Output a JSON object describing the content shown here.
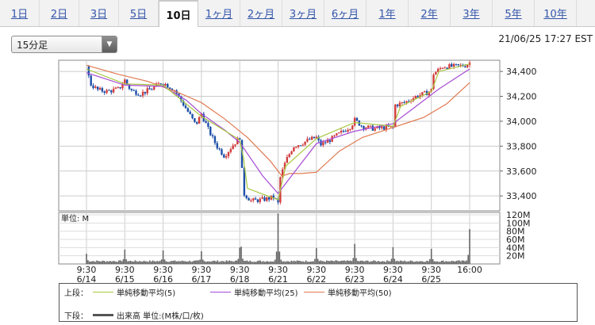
{
  "tabs": [
    "1日",
    "2日",
    "3日",
    "5日",
    "10日",
    "1ヶ月",
    "2ヶ月",
    "3ヶ月",
    "6ヶ月",
    "1年",
    "2年",
    "3年",
    "5年",
    "10年"
  ],
  "active_tab": "10日",
  "interval_select": {
    "value": "15分足",
    "icon": "chevron-down-icon"
  },
  "datetime": "21/06/25 17:27 EST",
  "legend": {
    "upper_label": "上段：",
    "lower_label": "下段：",
    "items": [
      {
        "label": "単純移動平均(5)",
        "color": "#a8c840"
      },
      {
        "label": "単純移動平均(25)",
        "color": "#a64cd6"
      },
      {
        "label": "単純移動平均(50)",
        "color": "#e07a50"
      }
    ],
    "volume_label": "出来高 単位:(M株/口/枚)",
    "volume_color": "#555555"
  },
  "chart_data": {
    "type": "candlestick",
    "x_labels": [
      {
        "time": "9:30",
        "date": "6/14"
      },
      {
        "time": "9:30",
        "date": "6/15"
      },
      {
        "time": "9:30",
        "date": "6/16"
      },
      {
        "time": "9:30",
        "date": "6/17"
      },
      {
        "time": "9:30",
        "date": "6/18"
      },
      {
        "time": "9:30",
        "date": "6/21"
      },
      {
        "time": "9:30",
        "date": "6/22"
      },
      {
        "time": "9:30",
        "date": "6/23"
      },
      {
        "time": "9:30",
        "date": "6/24"
      },
      {
        "time": "9:30",
        "date": "6/25"
      },
      {
        "time": "16:00",
        "date": ""
      }
    ],
    "price_axis": {
      "ticks": [
        "34,400",
        "34,200",
        "34,000",
        "33,800",
        "33,600",
        "33,400"
      ],
      "tick_values": [
        34400,
        34200,
        34000,
        33800,
        33600,
        33400
      ],
      "range": [
        33280,
        34490
      ]
    },
    "volume_axis": {
      "unit_label": "単位: M",
      "ticks": [
        "120M",
        "100M",
        "80M",
        "60M",
        "40M",
        "20M"
      ],
      "tick_values": [
        120,
        100,
        80,
        60,
        40,
        20
      ],
      "range": [
        0,
        120
      ]
    },
    "close_path": [
      {
        "t": 0.0,
        "v": 34440
      },
      {
        "t": 0.1,
        "v": 34300
      },
      {
        "t": 0.3,
        "v": 34250
      },
      {
        "t": 0.55,
        "v": 34240
      },
      {
        "t": 0.85,
        "v": 34260
      },
      {
        "t": 1.0,
        "v": 34330
      },
      {
        "t": 1.15,
        "v": 34250
      },
      {
        "t": 1.4,
        "v": 34220
      },
      {
        "t": 1.7,
        "v": 34260
      },
      {
        "t": 1.95,
        "v": 34310
      },
      {
        "t": 2.05,
        "v": 34300
      },
      {
        "t": 2.3,
        "v": 34250
      },
      {
        "t": 2.5,
        "v": 34150
      },
      {
        "t": 2.7,
        "v": 34050
      },
      {
        "t": 2.85,
        "v": 33970
      },
      {
        "t": 3.0,
        "v": 34060
      },
      {
        "t": 3.2,
        "v": 33920
      },
      {
        "t": 3.4,
        "v": 33800
      },
      {
        "t": 3.6,
        "v": 33720
      },
      {
        "t": 3.8,
        "v": 33800
      },
      {
        "t": 4.0,
        "v": 33870
      },
      {
        "t": 4.1,
        "v": 33420
      },
      {
        "t": 4.3,
        "v": 33360
      },
      {
        "t": 4.6,
        "v": 33370
      },
      {
        "t": 4.9,
        "v": 33390
      },
      {
        "t": 5.0,
        "v": 33340
      },
      {
        "t": 5.05,
        "v": 33540
      },
      {
        "t": 5.2,
        "v": 33680
      },
      {
        "t": 5.4,
        "v": 33800
      },
      {
        "t": 5.6,
        "v": 33820
      },
      {
        "t": 5.8,
        "v": 33850
      },
      {
        "t": 6.0,
        "v": 33870
      },
      {
        "t": 6.1,
        "v": 33810
      },
      {
        "t": 6.3,
        "v": 33840
      },
      {
        "t": 6.6,
        "v": 33900
      },
      {
        "t": 6.9,
        "v": 33960
      },
      {
        "t": 7.0,
        "v": 34010
      },
      {
        "t": 7.2,
        "v": 33960
      },
      {
        "t": 7.5,
        "v": 33940
      },
      {
        "t": 7.8,
        "v": 33950
      },
      {
        "t": 8.0,
        "v": 33950
      },
      {
        "t": 8.05,
        "v": 34130
      },
      {
        "t": 8.3,
        "v": 34150
      },
      {
        "t": 8.6,
        "v": 34200
      },
      {
        "t": 8.9,
        "v": 34230
      },
      {
        "t": 9.0,
        "v": 34250
      },
      {
        "t": 9.05,
        "v": 34380
      },
      {
        "t": 9.3,
        "v": 34440
      },
      {
        "t": 9.6,
        "v": 34440
      },
      {
        "t": 9.9,
        "v": 34450
      },
      {
        "t": 10.0,
        "v": 34470
      }
    ],
    "sma5": [
      {
        "t": 0,
        "v": 34420
      },
      {
        "t": 1,
        "v": 34300
      },
      {
        "t": 2,
        "v": 34290
      },
      {
        "t": 3,
        "v": 34040
      },
      {
        "t": 4,
        "v": 33850
      },
      {
        "t": 4.1,
        "v": 33700
      },
      {
        "t": 4.2,
        "v": 33460
      },
      {
        "t": 5,
        "v": 33370
      },
      {
        "t": 5.2,
        "v": 33640
      },
      {
        "t": 6,
        "v": 33860
      },
      {
        "t": 7,
        "v": 33990
      },
      {
        "t": 8,
        "v": 33960
      },
      {
        "t": 8.2,
        "v": 34120
      },
      {
        "t": 9,
        "v": 34240
      },
      {
        "t": 9.2,
        "v": 34400
      },
      {
        "t": 10,
        "v": 34460
      }
    ],
    "sma25": [
      {
        "t": 0,
        "v": 34390
      },
      {
        "t": 1,
        "v": 34290
      },
      {
        "t": 2,
        "v": 34280
      },
      {
        "t": 2.6,
        "v": 34170
      },
      {
        "t": 3,
        "v": 34060
      },
      {
        "t": 3.6,
        "v": 33930
      },
      {
        "t": 4,
        "v": 33830
      },
      {
        "t": 4.6,
        "v": 33560
      },
      {
        "t": 5,
        "v": 33420
      },
      {
        "t": 5.4,
        "v": 33580
      },
      {
        "t": 6,
        "v": 33820
      },
      {
        "t": 7,
        "v": 33920
      },
      {
        "t": 8,
        "v": 33980
      },
      {
        "t": 8.6,
        "v": 34120
      },
      {
        "t": 9.2,
        "v": 34260
      },
      {
        "t": 10,
        "v": 34420
      }
    ],
    "sma50": [
      {
        "t": 0,
        "v": 34450
      },
      {
        "t": 0.8,
        "v": 34380
      },
      {
        "t": 1.6,
        "v": 34320
      },
      {
        "t": 2.4,
        "v": 34230
      },
      {
        "t": 3,
        "v": 34150
      },
      {
        "t": 3.6,
        "v": 34020
      },
      {
        "t": 4.2,
        "v": 33870
      },
      {
        "t": 4.8,
        "v": 33680
      },
      {
        "t": 5.1,
        "v": 33560
      },
      {
        "t": 5.3,
        "v": 33580
      },
      {
        "t": 5.6,
        "v": 33580
      },
      {
        "t": 6,
        "v": 33590
      },
      {
        "t": 6.6,
        "v": 33760
      },
      {
        "t": 7.2,
        "v": 33870
      },
      {
        "t": 8,
        "v": 33950
      },
      {
        "t": 8.8,
        "v": 34030
      },
      {
        "t": 9.4,
        "v": 34140
      },
      {
        "t": 10,
        "v": 34310
      }
    ],
    "volume_spikes": [
      {
        "t": 0,
        "v": 20
      },
      {
        "t": 1,
        "v": 30
      },
      {
        "t": 2,
        "v": 28
      },
      {
        "t": 3,
        "v": 26
      },
      {
        "t": 4,
        "v": 33
      },
      {
        "t": 4.02,
        "v": 78
      },
      {
        "t": 5,
        "v": 118
      },
      {
        "t": 6,
        "v": 34
      },
      {
        "t": 7,
        "v": 44
      },
      {
        "t": 8,
        "v": 36
      },
      {
        "t": 9,
        "v": 32
      },
      {
        "t": 10,
        "v": 80
      }
    ],
    "volume_base": 5
  }
}
